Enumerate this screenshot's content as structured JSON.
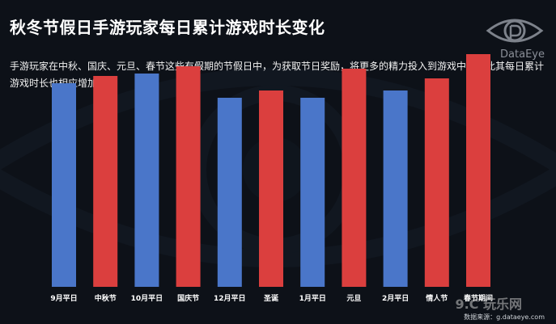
{
  "header": {
    "title": "秋冬节假日手游玩家每日累计游戏时长变化",
    "description": "手游玩家在中秋、国庆、元旦、春节这些有假期的节假日中，为获取节日奖励，将更多的精力投入到游戏中，因此其每日累计游戏时长也相应增加。"
  },
  "logo": {
    "text": "DataEye"
  },
  "footer": {
    "source": "数据来源：g.dataeye.com",
    "watermark": "9.C 玩乐网"
  },
  "colors": {
    "background": "#0d1118",
    "weekday_bar": "#4a76c9",
    "holiday_bar": "#db3f3e"
  },
  "chart_data": {
    "type": "bar",
    "title": "",
    "xlabel": "",
    "ylabel": "",
    "ylim": [
      0,
      100
    ],
    "grid": false,
    "categories": [
      "9月平日",
      "中秋节",
      "10月平日",
      "国庆节",
      "12月平日",
      "圣诞",
      "1月平日",
      "元旦",
      "2月平日",
      "情人节",
      "春节期间"
    ],
    "values": [
      84,
      87,
      88,
      91,
      78,
      81,
      78,
      90,
      81,
      86,
      96
    ],
    "bar_kind": [
      "weekday",
      "holiday",
      "weekday",
      "holiday",
      "weekday",
      "holiday",
      "weekday",
      "holiday",
      "weekday",
      "holiday",
      "holiday"
    ]
  }
}
